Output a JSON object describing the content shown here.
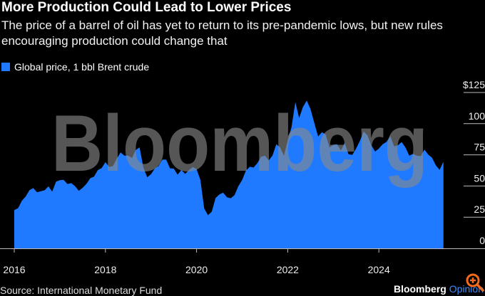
{
  "header": {
    "title": "More Production Could Lead to Lower Prices",
    "subtitle": "The price of a barrel of oil has yet to return to its pre-pandemic lows, but new rules encouraging production could change that"
  },
  "footer": {
    "source": "Source: International Monetary Fund",
    "brand": "Bloomberg",
    "brand_suffix": "Opinion",
    "zoom_icon": "magnifier-plus-icon"
  },
  "watermark": "Bloomberg",
  "colors": {
    "series": "#1f7aff",
    "background": "#000000",
    "watermark": "#8a8a8a",
    "zoom_icon": "#f26a1b"
  },
  "chart_data": {
    "type": "area",
    "title": "More Production Could Lead to Lower Prices",
    "legend": [
      "Global price, 1 bbl Brent crude"
    ],
    "legend_position": "top-left",
    "xlabel": "",
    "ylabel": "",
    "x_ticks": [
      "2016",
      "2018",
      "2020",
      "2022",
      "2024"
    ],
    "y_ticks": [
      "0",
      "25",
      "50",
      "75",
      "100",
      "$125"
    ],
    "y_tick_values": [
      0,
      25,
      50,
      75,
      100,
      125
    ],
    "y_axis_side": "right",
    "xlim": [
      "2016-01",
      "2025-06"
    ],
    "ylim": [
      0,
      125
    ],
    "grid": false,
    "series": [
      {
        "name": "Global price, 1 bbl Brent crude",
        "x_start": "2016-01",
        "frequency": "monthly",
        "values": [
          30.7,
          32.2,
          38.2,
          41.6,
          46.7,
          48.3,
          44.9,
          45.8,
          46.6,
          49.7,
          45.5,
          53.5,
          54.6,
          54.9,
          51.6,
          52.3,
          49.9,
          46.2,
          48.5,
          51.7,
          56.2,
          57.5,
          62.7,
          64.4,
          69.1,
          65.3,
          66.0,
          72.1,
          76.9,
          74.4,
          74.3,
          72.5,
          78.9,
          81.0,
          64.8,
          57.0,
          59.4,
          64.0,
          66.1,
          71.2,
          71.1,
          64.2,
          63.9,
          59.1,
          62.8,
          59.7,
          62.7,
          65.2,
          63.6,
          55.0,
          32.0,
          26.6,
          29.4,
          40.3,
          43.2,
          44.7,
          40.9,
          40.2,
          42.7,
          49.9,
          54.8,
          62.3,
          65.4,
          64.8,
          68.3,
          73.4,
          74.3,
          70.5,
          74.5,
          83.5,
          81.0,
          74.2,
          86.5,
          97.1,
          117.3,
          104.6,
          113.3,
          118.5,
          111.9,
          100.5,
          89.8,
          93.1,
          91.4,
          80.9,
          83.1,
          83.5,
          78.4,
          84.6,
          75.5,
          74.9,
          80.1,
          86.2,
          93.7,
          90.6,
          82.9,
          77.6,
          80.1,
          83.5,
          85.4,
          90.1,
          81.8,
          82.6,
          85.3,
          80.9,
          74.3,
          75.8,
          74.4,
          73.9,
          79.2,
          75.2,
          72.6,
          66.5,
          63.0,
          69.5
        ]
      }
    ]
  }
}
